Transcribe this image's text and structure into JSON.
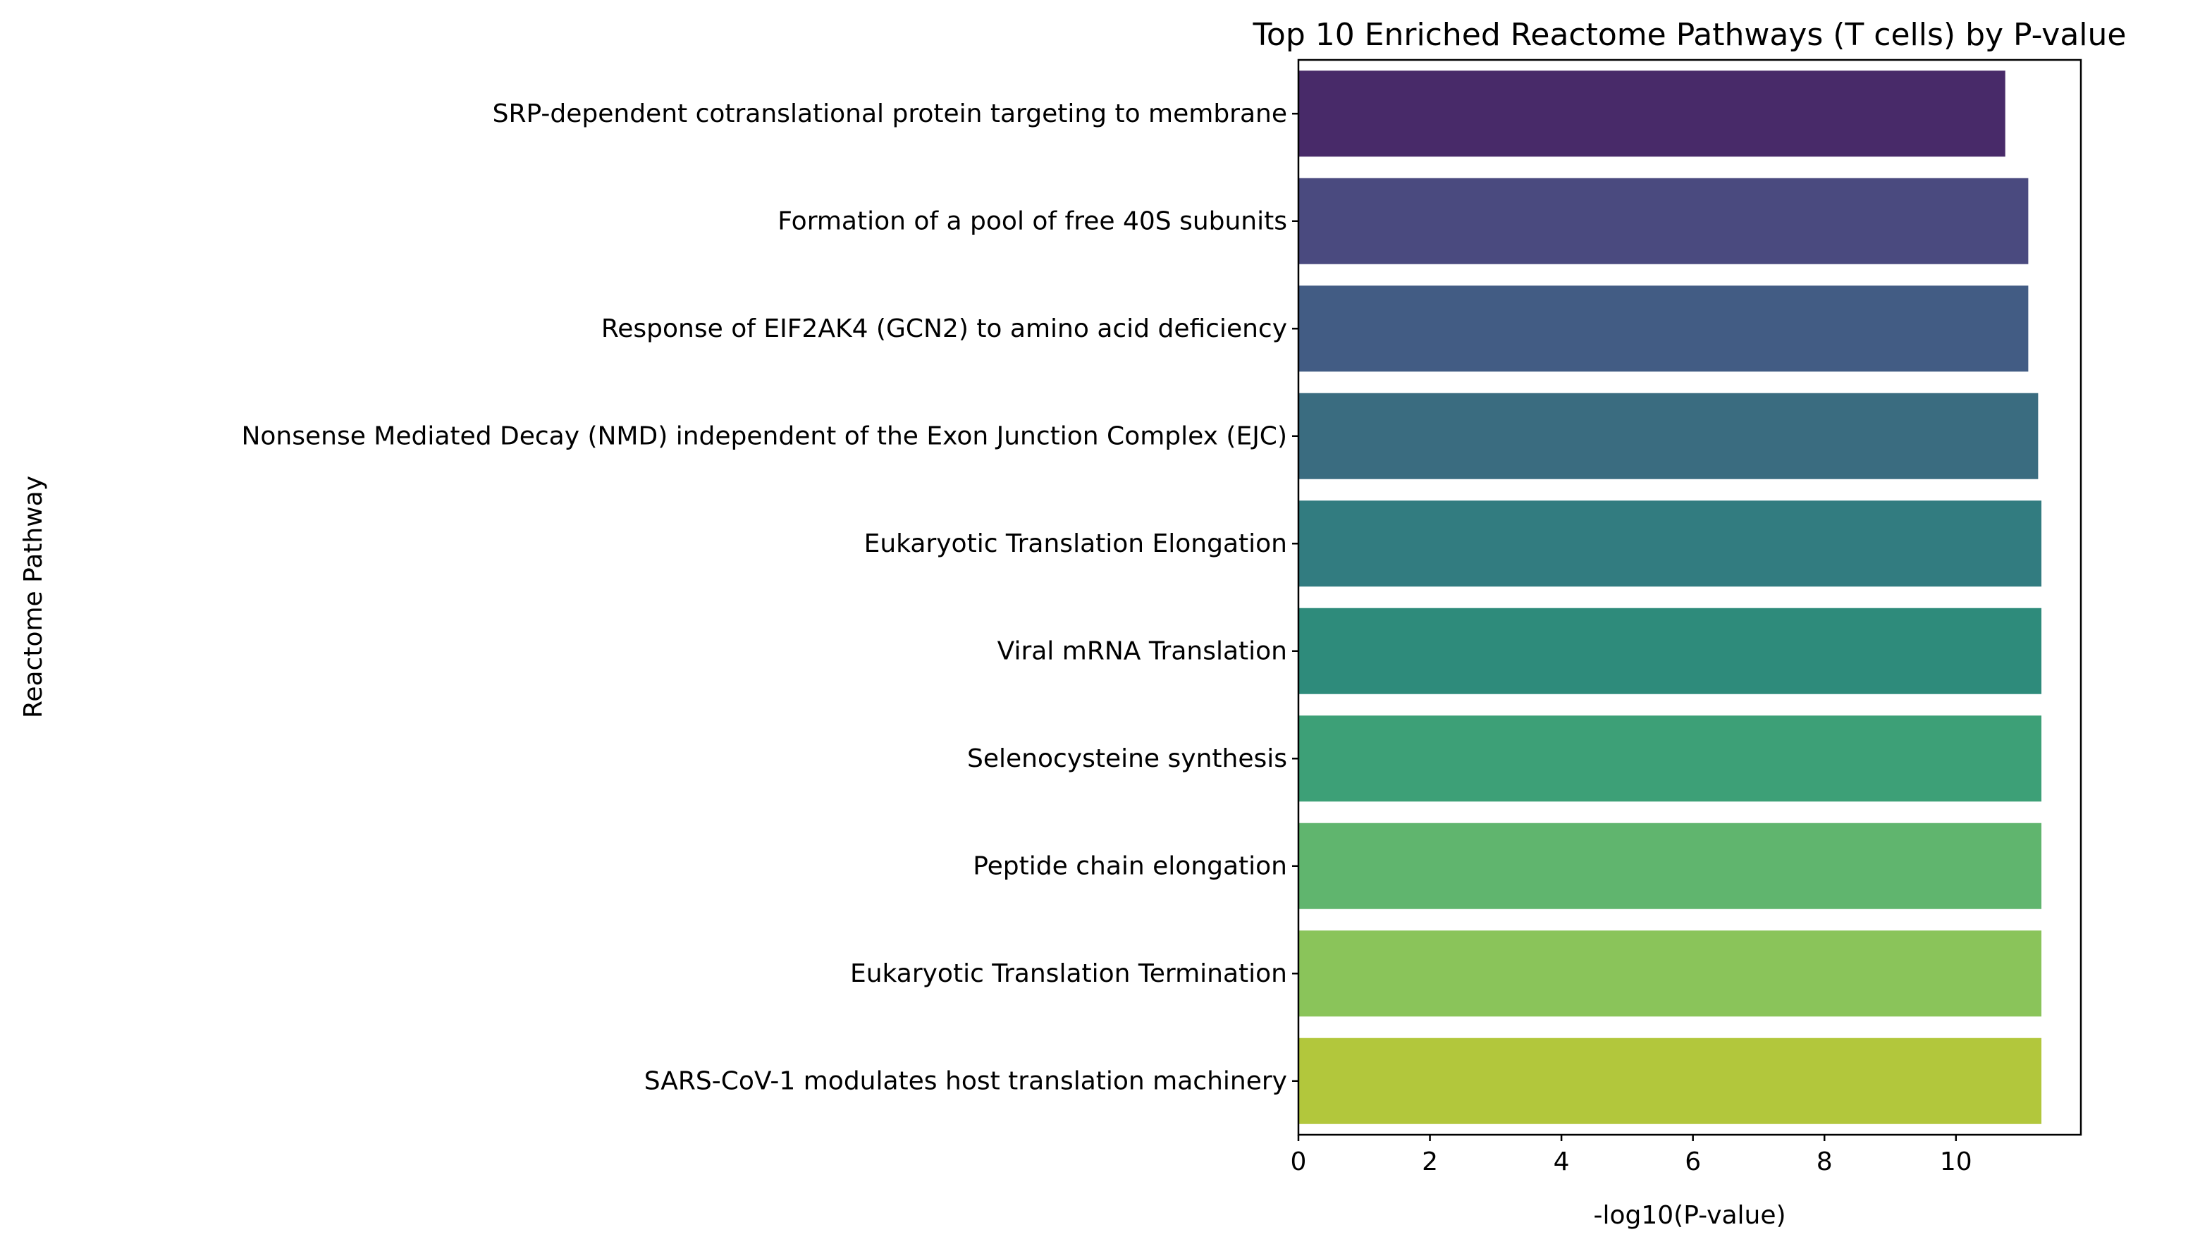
{
  "chart_data": {
    "type": "bar",
    "orientation": "horizontal",
    "title": "Top 10 Enriched Reactome Pathways (T cells) by P-value",
    "xlabel": "-log10(P-value)",
    "ylabel": "Reactome Pathway",
    "xlim": [
      0,
      11.9
    ],
    "xticks": [
      0,
      2,
      4,
      6,
      8,
      10
    ],
    "grid": false,
    "categories": [
      "SRP-dependent cotranslational protein targeting to membrane",
      "Formation of a pool of free 40S subunits",
      "Response of EIF2AK4 (GCN2) to amino acid deficiency",
      "Nonsense Mediated Decay (NMD) independent of the Exon Junction Complex (EJC)",
      "Eukaryotic Translation Elongation",
      "Viral mRNA Translation",
      "Selenocysteine synthesis",
      "Peptide chain elongation",
      "Eukaryotic Translation Termination",
      "SARS-CoV-1 modulates host translation machinery"
    ],
    "values": [
      10.75,
      11.1,
      11.1,
      11.25,
      11.3,
      11.3,
      11.3,
      11.3,
      11.3,
      11.3
    ],
    "colors": [
      "#482a69",
      "#4a4a7f",
      "#425c84",
      "#3a6c80",
      "#327c80",
      "#2e8b7b",
      "#3da077",
      "#60b56e",
      "#8ac45a",
      "#b2c73c"
    ]
  }
}
